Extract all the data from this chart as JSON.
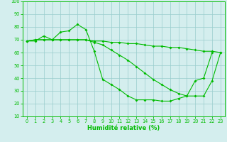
{
  "x": [
    0,
    1,
    2,
    3,
    4,
    5,
    6,
    7,
    8,
    9,
    10,
    11,
    12,
    13,
    14,
    15,
    16,
    17,
    18,
    19,
    20,
    21,
    22,
    23
  ],
  "line1": [
    69,
    70,
    70,
    70,
    70,
    70,
    70,
    70,
    69,
    69,
    68,
    68,
    67,
    67,
    66,
    65,
    65,
    64,
    64,
    63,
    62,
    61,
    61,
    60
  ],
  "line2": [
    69,
    69,
    73,
    70,
    76,
    77,
    82,
    78,
    61,
    39,
    35,
    31,
    26,
    23,
    23,
    23,
    22,
    22,
    24,
    26,
    38,
    40,
    60,
    null
  ],
  "line3": [
    69,
    70,
    70,
    70,
    70,
    70,
    70,
    70,
    68,
    66,
    62,
    58,
    54,
    49,
    44,
    39,
    35,
    31,
    28,
    26,
    26,
    26,
    38,
    60
  ],
  "xlabel": "Humidité relative (%)",
  "xlim": [
    -0.5,
    23.5
  ],
  "ylim": [
    10,
    100
  ],
  "yticks": [
    10,
    20,
    30,
    40,
    50,
    60,
    70,
    80,
    90,
    100
  ],
  "xticks": [
    0,
    1,
    2,
    3,
    4,
    5,
    6,
    7,
    8,
    9,
    10,
    11,
    12,
    13,
    14,
    15,
    16,
    17,
    18,
    19,
    20,
    21,
    22,
    23
  ],
  "line_color": "#00bb00",
  "bg_color": "#d4eeee",
  "grid_color": "#99cccc",
  "spine_color": "#00bb00"
}
